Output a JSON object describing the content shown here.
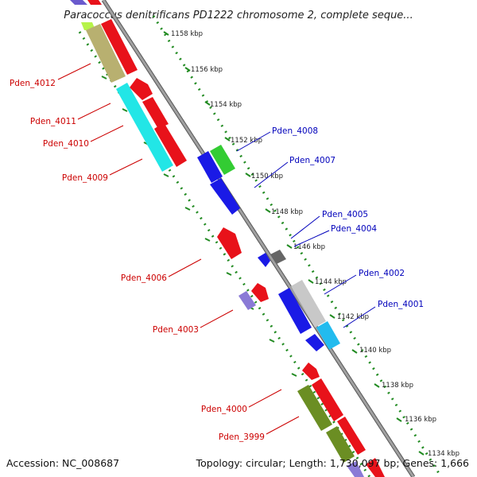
{
  "title": "Paracoccus denitrificans PD1222 chromosome 2, complete seque...",
  "footer": {
    "accession": "Accession: NC_008687",
    "topology": "Topology: circular; Length: 1,730,097 bp; Genes: 1,666"
  },
  "scale_labels": [
    "1158 kbp",
    "1156 kbp",
    "1154 kbp",
    "1152 kbp",
    "1150 kbp",
    "1148 kbp",
    "1146 kbp",
    "1144 kbp",
    "1142 kbp",
    "1140 kbp",
    "1138 kbp",
    "1136 kbp",
    "1134 kbp"
  ],
  "genes_reverse": [
    {
      "name": "Pden_4012",
      "color": "#cc0000"
    },
    {
      "name": "Pden_4011",
      "color": "#cc0000"
    },
    {
      "name": "Pden_4010",
      "color": "#cc0000"
    },
    {
      "name": "Pden_4009",
      "color": "#cc0000"
    },
    {
      "name": "Pden_4006",
      "color": "#cc0000"
    },
    {
      "name": "Pden_4003",
      "color": "#cc0000"
    },
    {
      "name": "Pden_4000",
      "color": "#cc0000"
    },
    {
      "name": "Pden_3999",
      "color": "#cc0000"
    }
  ],
  "genes_forward": [
    {
      "name": "Pden_4008",
      "color": "#0000bb"
    },
    {
      "name": "Pden_4007",
      "color": "#0000bb"
    },
    {
      "name": "Pden_4005",
      "color": "#0000bb"
    },
    {
      "name": "Pden_4004",
      "color": "#0000bb"
    },
    {
      "name": "Pden_4002",
      "color": "#0000bb"
    },
    {
      "name": "Pden_4001",
      "color": "#0000bb"
    }
  ],
  "colors": {
    "backbone": "#8a8a8a",
    "dots": "#228b22",
    "red": "#e8121a",
    "blue": "#1a1ae6",
    "cyan": "#22e6e6",
    "olive": "#b8b070",
    "lime": "#33cc33",
    "gray": "#c8c8c8",
    "dark_gray": "#666666",
    "light_blue": "#22bbee",
    "dark_olive": "#6b8e23",
    "purple": "#8a7ad6"
  }
}
